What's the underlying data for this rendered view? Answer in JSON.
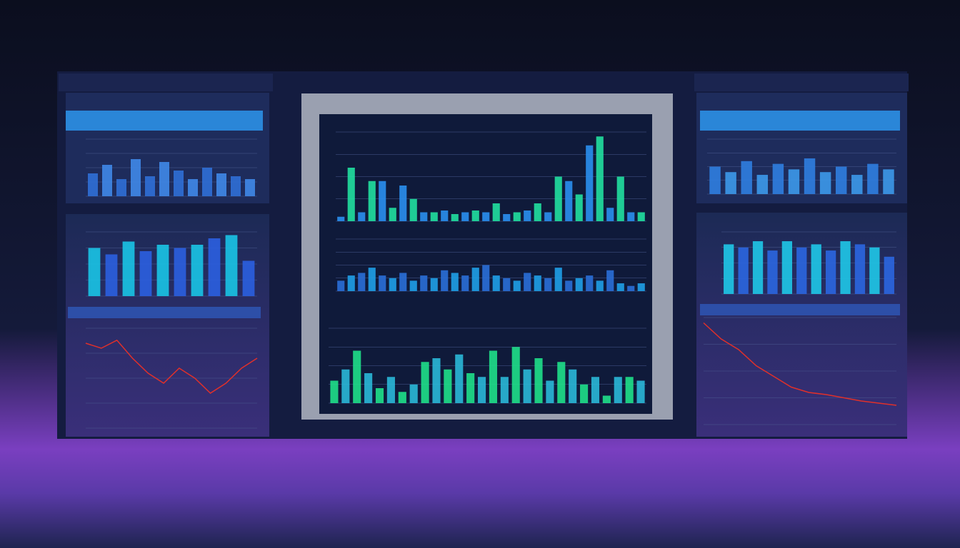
{
  "panels": [
    {
      "type": "bar",
      "color": "#2f6fd6",
      "accent": "#3f88e8",
      "values": [
        40,
        55,
        30,
        65,
        35,
        60,
        45,
        30,
        50,
        40,
        35,
        30
      ]
    },
    {
      "type": "bar",
      "color": "#19c4e6",
      "accent": "#2b5fe0",
      "values": [
        75,
        65,
        85,
        70,
        80,
        75,
        80,
        90,
        95,
        55
      ]
    },
    {
      "type": "line",
      "color": "#e0302a",
      "values": [
        85,
        80,
        88,
        70,
        55,
        45,
        60,
        50,
        35,
        45,
        60,
        70
      ]
    },
    {
      "type": "bar",
      "color": "#2a8ff0",
      "accent": "#21e0a0",
      "values": [
        5,
        60,
        10,
        45,
        45,
        15,
        40,
        25,
        10,
        10,
        12,
        8,
        10,
        12,
        10,
        20,
        8,
        10,
        12,
        20,
        10,
        50,
        45,
        30,
        85,
        95,
        15,
        50,
        10,
        10
      ]
    },
    {
      "type": "bar",
      "color": "#2a6fd8",
      "accent": "#1fa0e8",
      "values": [
        20,
        30,
        35,
        45,
        30,
        25,
        35,
        20,
        30,
        25,
        40,
        35,
        30,
        45,
        50,
        30,
        25,
        20,
        35,
        30,
        25,
        45,
        20,
        25,
        30,
        20,
        40,
        15,
        10,
        15
      ]
    },
    {
      "type": "bar",
      "color": "#1fe08a",
      "accent": "#2ab8d8",
      "values": [
        30,
        45,
        70,
        40,
        20,
        35,
        15,
        25,
        55,
        60,
        45,
        65,
        40,
        35,
        70,
        35,
        75,
        45,
        60,
        30,
        55,
        45,
        25,
        35,
        10,
        35,
        35,
        30
      ]
    },
    {
      "type": "bar",
      "color": "#2f7ee0",
      "accent": "#3c99ea",
      "values": [
        50,
        40,
        60,
        35,
        55,
        45,
        65,
        40,
        50,
        35,
        55,
        45
      ]
    },
    {
      "type": "bar",
      "color": "#1fc8e8",
      "accent": "#2b66e0",
      "values": [
        80,
        75,
        85,
        70,
        85,
        75,
        80,
        70,
        85,
        80,
        75,
        60
      ]
    },
    {
      "type": "line",
      "color": "#e0302a",
      "values": [
        95,
        80,
        70,
        55,
        45,
        35,
        30,
        28,
        25,
        22,
        20,
        18
      ]
    }
  ]
}
